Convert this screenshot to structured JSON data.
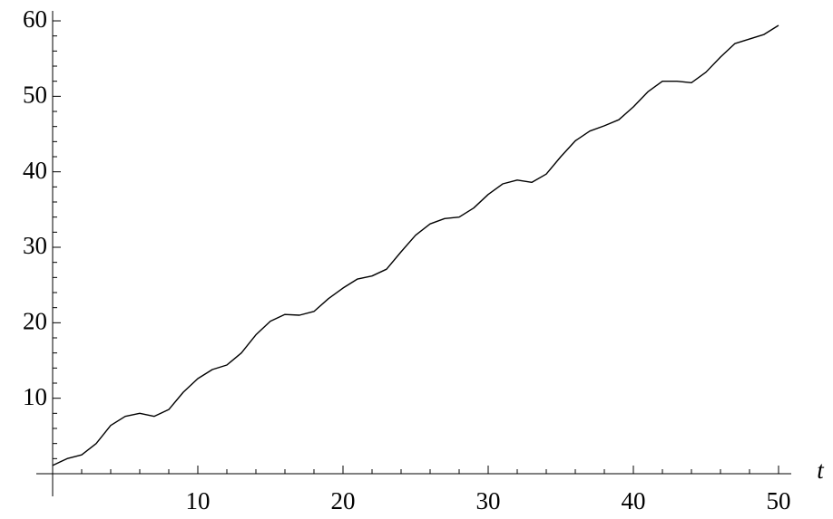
{
  "chart_data": {
    "type": "line",
    "xlabel": "t",
    "x": [
      0,
      1,
      2,
      3,
      4,
      5,
      6,
      7,
      8,
      9,
      10,
      11,
      12,
      13,
      14,
      15,
      16,
      17,
      18,
      19,
      20,
      21,
      22,
      23,
      24,
      25,
      26,
      27,
      28,
      29,
      30,
      31,
      32,
      33,
      34,
      35,
      36,
      37,
      38,
      39,
      40,
      41,
      42,
      43,
      44,
      45,
      46,
      47,
      48,
      49,
      50
    ],
    "series": [
      {
        "color": "#000000",
        "values": [
          1.1,
          2.0,
          2.5,
          4.0,
          6.4,
          7.6,
          8.0,
          7.6,
          8.5,
          10.8,
          12.6,
          13.8,
          14.4,
          16.0,
          18.4,
          20.2,
          21.1,
          21.0,
          21.5,
          23.2,
          24.6,
          25.8,
          26.2,
          27.1,
          29.4,
          31.6,
          33.1,
          33.8,
          34.0,
          35.2,
          37.0,
          38.4,
          38.9,
          38.6,
          39.7,
          42.0,
          44.1,
          45.4,
          46.1,
          46.9,
          48.6,
          50.6,
          52.0,
          52.0,
          51.8,
          53.2,
          55.2,
          57.0,
          57.6,
          58.2,
          59.4
        ]
      }
    ],
    "xlim": [
      0,
      51
    ],
    "ylim": [
      0,
      61
    ],
    "xticks": [
      10,
      20,
      30,
      40,
      50
    ],
    "yticks": [
      10,
      20,
      30,
      40,
      50,
      60
    ],
    "xminorticks": [
      2,
      4,
      6,
      8,
      12,
      14,
      16,
      18,
      22,
      24,
      26,
      28,
      32,
      34,
      36,
      38,
      42,
      44,
      46,
      48
    ],
    "yminorticks": [
      2,
      4,
      6,
      8,
      12,
      14,
      16,
      18,
      22,
      24,
      26,
      28,
      32,
      34,
      36,
      38,
      42,
      44,
      46,
      48,
      52,
      54,
      56,
      58
    ]
  }
}
